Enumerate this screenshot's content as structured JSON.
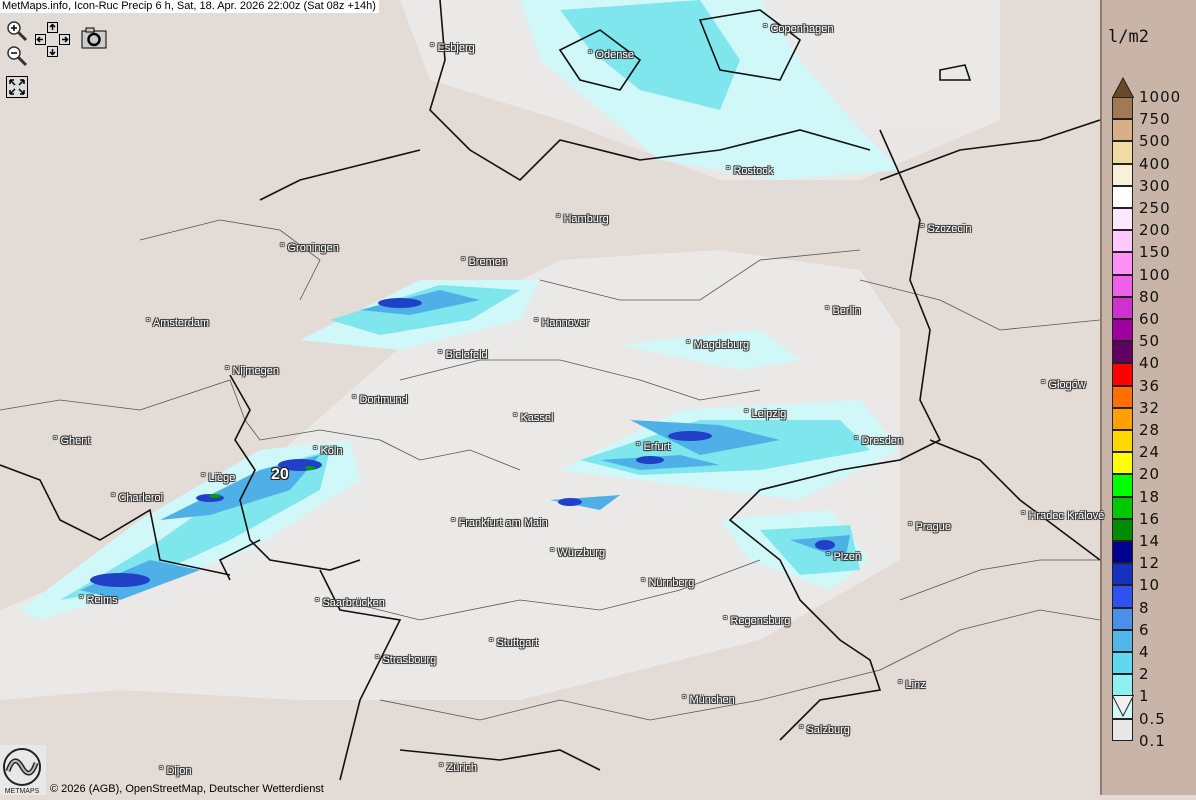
{
  "title": "MetMaps.info, Icon-Ruc Precip 6 h, Sat, 18. Apr. 2026 22:00z (Sat 08z +14h)",
  "controls": {
    "zoom_in": "zoom-in-icon",
    "zoom_out": "zoom-out-icon",
    "pan": "pan-arrows-icon",
    "screenshot": "camera-icon",
    "fullscreen": "fullscreen-icon"
  },
  "cities": [
    {
      "name": "Esbjerg"
    },
    {
      "name": "Odense"
    },
    {
      "name": "Copenhagen"
    },
    {
      "name": "Rostock"
    },
    {
      "name": "Hamburg"
    },
    {
      "name": "Szczecin"
    },
    {
      "name": "Groningen"
    },
    {
      "name": "Bremen"
    },
    {
      "name": "Berlin"
    },
    {
      "name": "Amsterdam"
    },
    {
      "name": "Hannover"
    },
    {
      "name": "Bielefeld"
    },
    {
      "name": "Magdeburg"
    },
    {
      "name": "Nijmegen"
    },
    {
      "name": "Głogów"
    },
    {
      "name": "Dortmund"
    },
    {
      "name": "Kassel"
    },
    {
      "name": "Leipzig"
    },
    {
      "name": "Ghent"
    },
    {
      "name": "Erfurt"
    },
    {
      "name": "Dresden"
    },
    {
      "name": "Köln"
    },
    {
      "name": "Liège"
    },
    {
      "name": "Charleroi"
    },
    {
      "name": "Hradec Králové"
    },
    {
      "name": "Frankfurt am Main"
    },
    {
      "name": "Prague"
    },
    {
      "name": "Würzburg"
    },
    {
      "name": "Plzeň"
    },
    {
      "name": "Nürnberg"
    },
    {
      "name": "Reims"
    },
    {
      "name": "Saarbrücken"
    },
    {
      "name": "Regensburg"
    },
    {
      "name": "Stuttgart"
    },
    {
      "name": "Strasbourg"
    },
    {
      "name": "Linz"
    },
    {
      "name": "München"
    },
    {
      "name": "Salzburg"
    },
    {
      "name": "Dijon"
    },
    {
      "name": "Zürich"
    }
  ],
  "value_label": "20",
  "legend": {
    "unit": "l/m2",
    "top_arrow_color": "#6b4a2a",
    "bottom_arrow_color": "#f0f0f0",
    "labels": [
      "1000",
      "750",
      "500",
      "400",
      "300",
      "250",
      "200",
      "150",
      "100",
      "80",
      "60",
      "50",
      "40",
      "36",
      "32",
      "28",
      "24",
      "20",
      "18",
      "16",
      "14",
      "12",
      "10",
      "8",
      "6",
      "4",
      "2",
      "1",
      "0.5",
      "0.1"
    ],
    "colors": [
      "#a07a55",
      "#d8b088",
      "#f0dca0",
      "#f8f0d8",
      "#ffffff",
      "#ffe8ff",
      "#ffc8ff",
      "#ff90f8",
      "#f060e8",
      "#d030d0",
      "#a000a0",
      "#600060",
      "#ff0000",
      "#ff7000",
      "#ffa000",
      "#ffd800",
      "#ffff00",
      "#00ff00",
      "#00c800",
      "#008c00",
      "#000090",
      "#1830c0",
      "#3050f0",
      "#4890e8",
      "#50b8e8",
      "#60d8f0",
      "#90f0f0",
      "#d0f8f8",
      "#e8e8e8"
    ]
  },
  "copyright": "© 2026 (AGB), OpenStreetMap, Deutscher Wetterdienst",
  "logo_text": "METMAPS"
}
